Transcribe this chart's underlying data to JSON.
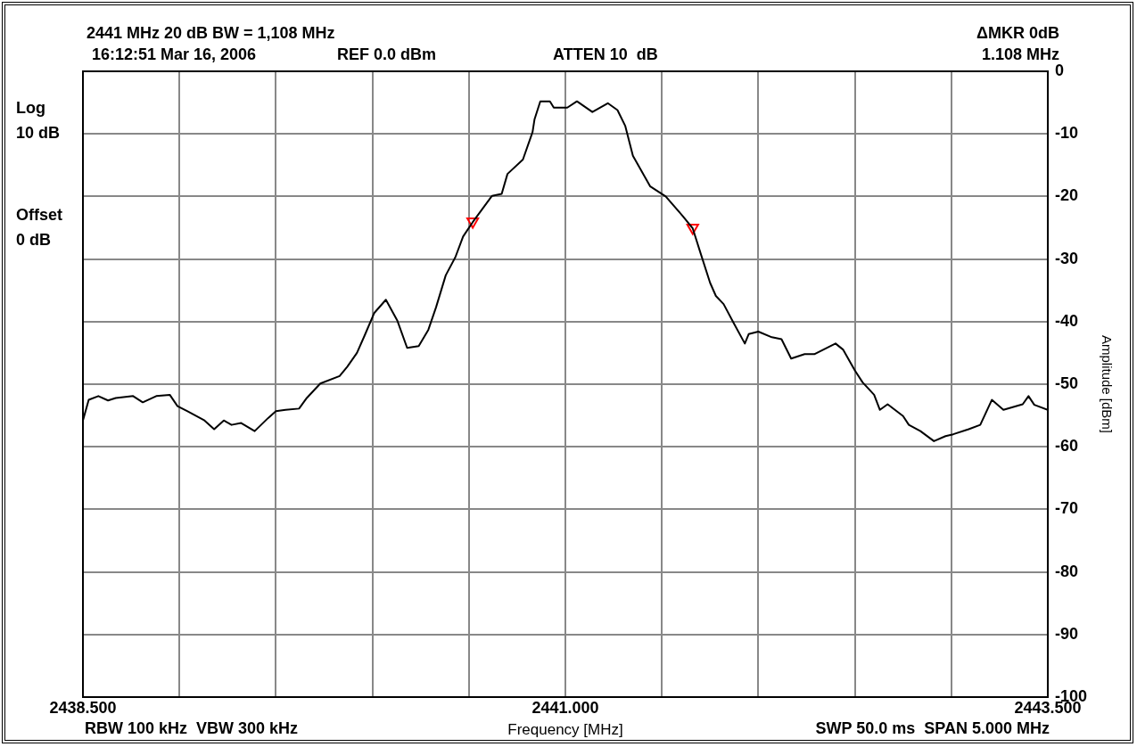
{
  "chart_data": {
    "type": "line",
    "title": "2441 MHz 20 dB BW = 1,108 MHz",
    "xlabel": "Frequency [MHz]",
    "ylabel": "Amplitude [dBm]",
    "annotations": [
      "16:12:51 Mar 16, 2006",
      "REF 0.0 dBm",
      "ATTEN 10  dB",
      "ΔMKR 0dB",
      "1.108 MHz",
      "Log",
      "10 dB",
      "Offset",
      "0 dB",
      "RBW 100 kHz  VBW 300 kHz",
      "SWP 50.0 ms  SPAN 5.000 MHz"
    ],
    "xlim": [
      2438.5,
      2443.5
    ],
    "xticks": [
      {
        "value": 2438.5,
        "label": "2438.500"
      },
      {
        "value": 2439,
        "label": null
      },
      {
        "value": 2439.5,
        "label": null
      },
      {
        "value": 2440,
        "label": null
      },
      {
        "value": 2440.5,
        "label": null
      },
      {
        "value": 2441,
        "label": "2441.000"
      },
      {
        "value": 2441.5,
        "label": null
      },
      {
        "value": 2442,
        "label": null
      },
      {
        "value": 2442.5,
        "label": null
      },
      {
        "value": 2443,
        "label": null
      },
      {
        "value": 2443.5,
        "label": "2443.500"
      }
    ],
    "ylim": [
      -100,
      0
    ],
    "yticks": [
      0,
      -10,
      -20,
      -30,
      -40,
      -50,
      -60,
      -70,
      -80,
      -90,
      -100
    ],
    "grid": true,
    "legend": false,
    "marker": "none",
    "line_style": "solid",
    "series": [
      {
        "color": "#000000",
        "x": [
          2438.5,
          2438.53,
          2438.58,
          2438.63,
          2438.67,
          2438.76,
          2438.81,
          2438.88,
          2438.95,
          2438.99,
          2439.04,
          2439.13,
          2439.18,
          2439.23,
          2439.27,
          2439.32,
          2439.39,
          2439.46,
          2439.5,
          2439.55,
          2439.62,
          2439.66,
          2439.73,
          2439.83,
          2439.87,
          2439.92,
          2439.96,
          2440.01,
          2440.07,
          2440.13,
          2440.18,
          2440.24,
          2440.29,
          2440.33,
          2440.38,
          2440.43,
          2440.47,
          2440.52,
          2440.62,
          2440.67,
          2440.7,
          2440.78,
          2440.83,
          2440.84,
          2440.87,
          2440.92,
          2440.94,
          2441.01,
          2441.06,
          2441.14,
          2441.22,
          2441.27,
          2441.31,
          2441.35,
          2441.44,
          2441.52,
          2441.61,
          2441.66,
          2441.7,
          2441.75,
          2441.78,
          2441.82,
          2441.87,
          2441.93,
          2441.95,
          2442.0,
          2442.07,
          2442.12,
          2442.17,
          2442.24,
          2442.29,
          2442.4,
          2442.44,
          2442.5,
          2442.54,
          2442.6,
          2442.63,
          2442.67,
          2442.75,
          2442.78,
          2442.84,
          2442.91,
          2442.97,
          2443.01,
          2443.09,
          2443.15,
          2443.21,
          2443.27,
          2443.37,
          2443.4,
          2443.43,
          2443.5
        ],
        "values": [
          -55.8,
          -52.5,
          -51.9,
          -52.6,
          -52.2,
          -51.9,
          -52.9,
          -51.9,
          -51.7,
          -53.5,
          -54.3,
          -55.8,
          -57.2,
          -55.8,
          -56.5,
          -56.2,
          -57.5,
          -55.4,
          -54.3,
          -54.1,
          -53.9,
          -52.2,
          -49.9,
          -48.7,
          -47.2,
          -45.0,
          -42.2,
          -38.6,
          -36.5,
          -39.9,
          -44.2,
          -43.9,
          -41.3,
          -37.7,
          -32.6,
          -29.7,
          -26.4,
          -24.1,
          -19.9,
          -19.6,
          -16.4,
          -14.1,
          -9.7,
          -7.7,
          -4.8,
          -4.8,
          -5.8,
          -5.8,
          -4.8,
          -6.5,
          -5.1,
          -6.2,
          -8.7,
          -13.5,
          -18.4,
          -20.0,
          -23.2,
          -25.1,
          -29.0,
          -33.8,
          -35.9,
          -37.2,
          -40.1,
          -43.5,
          -42.0,
          -41.6,
          -42.5,
          -42.8,
          -45.9,
          -45.2,
          -45.2,
          -43.5,
          -44.5,
          -47.8,
          -49.7,
          -51.7,
          -54.1,
          -53.2,
          -55.1,
          -56.5,
          -57.5,
          -59.1,
          -58.3,
          -58.0,
          -57.2,
          -56.5,
          -52.5,
          -54.1,
          -53.2,
          -51.9,
          -53.3,
          -54.1
        ]
      },
      {
        "type": "scatter",
        "color": "#ff0000",
        "marker": "triangle",
        "x": [
          2440.52,
          2441.66
        ],
        "values": [
          -24,
          -25
        ]
      }
    ]
  }
}
